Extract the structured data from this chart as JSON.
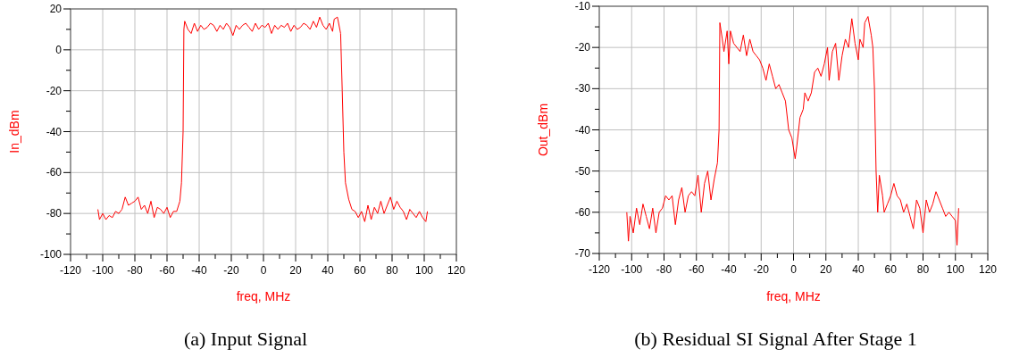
{
  "chart_data": [
    {
      "type": "line",
      "xlabel": "freq, MHz",
      "ylabel": "In_dBm",
      "annotations": [
        "(a) Input Signal"
      ],
      "grid": true,
      "xlim": [
        -120,
        120
      ],
      "xticks": [
        -120,
        {
          "value": -110,
          "label": null
        },
        -100,
        {
          "value": -90,
          "label": null
        },
        -80,
        {
          "value": -70,
          "label": null
        },
        -60,
        {
          "value": -50,
          "label": null
        },
        -40,
        {
          "value": -30,
          "label": null
        },
        -20,
        {
          "value": -10,
          "label": null
        },
        0,
        {
          "value": 10,
          "label": null
        },
        20,
        {
          "value": 30,
          "label": null
        },
        40,
        {
          "value": 50,
          "label": null
        },
        60,
        {
          "value": 70,
          "label": null
        },
        80,
        {
          "value": 90,
          "label": null
        },
        100,
        {
          "value": 110,
          "label": null
        },
        120
      ],
      "ylim": [
        -100,
        20
      ],
      "yticks": [
        -100,
        {
          "value": -90,
          "label": null
        },
        -80,
        {
          "value": -70,
          "label": null
        },
        -60,
        {
          "value": -50,
          "label": null
        },
        -40,
        {
          "value": -30,
          "label": null
        },
        -20,
        {
          "value": -10,
          "label": null
        },
        0,
        {
          "value": 10,
          "label": null
        },
        20
      ],
      "series": [
        {
          "color": "#ff0000",
          "x": [
            -103,
            -102,
            -100,
            -98,
            -96,
            -94,
            -92,
            -90,
            -88,
            -86,
            -84,
            -82,
            -80,
            -78,
            -76,
            -74,
            -72,
            -70,
            -68,
            -66,
            -64,
            -62,
            -60,
            -58,
            -56,
            -54,
            -52,
            -51,
            -50,
            -49.5,
            -49,
            -47,
            -45,
            -43,
            -41,
            -39,
            -37,
            -35,
            -33,
            -31,
            -29,
            -27,
            -25,
            -23,
            -21,
            -19,
            -17,
            -15,
            -13,
            -11,
            -9,
            -7,
            -5,
            -3,
            -1,
            1,
            3,
            5,
            7,
            9,
            11,
            13,
            15,
            17,
            19,
            21,
            23,
            25,
            27,
            29,
            31,
            33,
            35,
            37,
            39,
            41,
            43,
            44,
            46,
            48,
            49,
            50,
            51,
            53,
            55,
            57,
            59,
            61,
            63,
            65,
            67,
            69,
            71,
            73,
            75,
            77,
            79,
            81,
            83,
            85,
            87,
            89,
            91,
            93,
            95,
            97,
            99,
            101,
            102
          ],
          "values": [
            -78,
            -83,
            -80,
            -83,
            -81,
            -82,
            -79,
            -80,
            -78,
            -72,
            -76,
            -75,
            -74,
            -72,
            -78,
            -76,
            -80,
            -74,
            -82,
            -77,
            -78,
            -80,
            -77,
            -82,
            -79,
            -79,
            -74,
            -65,
            -40,
            10,
            14,
            10,
            8,
            13,
            9,
            12,
            10,
            11,
            13,
            12,
            9,
            12,
            10,
            13,
            11,
            7,
            12,
            10,
            12,
            13,
            11,
            9,
            13,
            10,
            12,
            11,
            13,
            8,
            12,
            10,
            12,
            11,
            13,
            9,
            12,
            10,
            11,
            13,
            12,
            10,
            14,
            11,
            16,
            12,
            10,
            13,
            9,
            15,
            16,
            8,
            -20,
            -50,
            -65,
            -73,
            -78,
            -79,
            -82,
            -79,
            -84,
            -76,
            -83,
            -77,
            -80,
            -74,
            -80,
            -76,
            -72,
            -78,
            -74,
            -77,
            -79,
            -83,
            -78,
            -80,
            -82,
            -79,
            -82,
            -84,
            -79
          ]
        }
      ]
    },
    {
      "type": "line",
      "xlabel": "freq, MHz",
      "ylabel": "Out_dBm",
      "annotations": [
        "(b) Residual SI Signal After Stage 1"
      ],
      "grid": true,
      "xlim": [
        -120,
        120
      ],
      "xticks": [
        -120,
        {
          "value": -110,
          "label": null
        },
        -100,
        {
          "value": -90,
          "label": null
        },
        -80,
        {
          "value": -70,
          "label": null
        },
        -60,
        {
          "value": -50,
          "label": null
        },
        -40,
        {
          "value": -30,
          "label": null
        },
        -20,
        {
          "value": -10,
          "label": null
        },
        0,
        {
          "value": 10,
          "label": null
        },
        20,
        {
          "value": 30,
          "label": null
        },
        40,
        {
          "value": 50,
          "label": null
        },
        60,
        {
          "value": 70,
          "label": null
        },
        80,
        {
          "value": 90,
          "label": null
        },
        100,
        {
          "value": 110,
          "label": null
        },
        120
      ],
      "ylim": [
        -70,
        -10
      ],
      "yticks": [
        -70,
        {
          "value": -65,
          "label": null
        },
        -60,
        {
          "value": -55,
          "label": null
        },
        -50,
        {
          "value": -45,
          "label": null
        },
        -40,
        {
          "value": -35,
          "label": null
        },
        -30,
        {
          "value": -25,
          "label": null
        },
        -20,
        {
          "value": -15,
          "label": null
        },
        -10
      ],
      "series": [
        {
          "color": "#ff0000",
          "x": [
            -103,
            -102,
            -101,
            -99,
            -97,
            -95,
            -93,
            -91,
            -89,
            -87,
            -85,
            -83,
            -81,
            -79,
            -77,
            -75,
            -73,
            -71,
            -69,
            -67,
            -65,
            -63,
            -61,
            -59,
            -57,
            -55,
            -53,
            -51,
            -49,
            -47,
            -46,
            -45.5,
            -44,
            -43,
            -41,
            -40,
            -39,
            -37,
            -35,
            -33,
            -31,
            -29,
            -27,
            -25,
            -23,
            -21,
            -19,
            -17,
            -15,
            -13,
            -11,
            -9,
            -7,
            -5,
            -3,
            -1,
            1,
            2,
            4,
            6,
            7,
            9,
            11,
            13,
            15,
            17,
            19,
            21,
            22,
            24,
            26,
            28,
            30,
            32,
            34,
            36,
            38,
            40,
            41,
            43,
            44,
            46,
            48,
            49,
            50,
            51,
            52,
            53,
            55,
            56,
            58,
            60,
            62,
            64,
            66,
            68,
            70,
            72,
            74,
            76,
            78,
            80,
            82,
            84,
            86,
            88,
            90,
            92,
            94,
            96,
            98,
            100,
            101,
            102
          ],
          "values": [
            -60,
            -67,
            -61,
            -65,
            -59,
            -63,
            -58,
            -61,
            -64,
            -59,
            -65,
            -60,
            -59,
            -56,
            -57,
            -56,
            -63,
            -57,
            -54,
            -60,
            -56,
            -55,
            -56,
            -51,
            -60,
            -53,
            -50,
            -57,
            -52,
            -48,
            -40,
            -14,
            -18,
            -21,
            -16,
            -24,
            -16,
            -19,
            -20,
            -21,
            -17,
            -22,
            -18,
            -21,
            -22,
            -23,
            -25,
            -28,
            -24,
            -27,
            -30,
            -29,
            -31,
            -33,
            -40,
            -42,
            -47,
            -44,
            -37,
            -35,
            -31,
            -33,
            -31,
            -26,
            -25,
            -27,
            -24,
            -20,
            -28,
            -21,
            -19,
            -28,
            -22,
            -18,
            -20,
            -13,
            -19,
            -23,
            -18,
            -20,
            -14,
            -12.5,
            -17,
            -20,
            -30,
            -50,
            -60,
            -51,
            -56,
            -60,
            -58,
            -56,
            -53,
            -56,
            -57,
            -60,
            -58,
            -61,
            -64,
            -57,
            -59,
            -65,
            -57,
            -60,
            -58,
            -55,
            -57,
            -59,
            -61,
            -60,
            -61,
            -62,
            -68,
            -59
          ]
        }
      ]
    }
  ]
}
